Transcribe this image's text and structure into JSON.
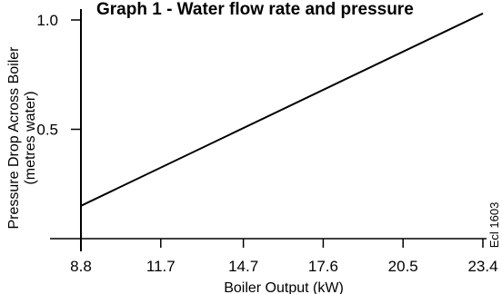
{
  "chart_data": {
    "type": "line",
    "title": "Graph 1 - Water flow rate and pressure",
    "xlabel": "Boiler Output (kW)",
    "ylabel": [
      "Pressure Drop Across Boiler",
      "(metres water)"
    ],
    "x_ticks": [
      "8.8",
      "11.7",
      "14.7",
      "17.6",
      "20.5",
      "23.4"
    ],
    "y_ticks": [
      "0.5",
      "1.0"
    ],
    "xlim": [
      8.8,
      23.4
    ],
    "ylim": [
      0,
      1.0
    ],
    "series": [
      {
        "x": [
          8.8,
          23.4
        ],
        "y": [
          0.15,
          1.03
        ]
      }
    ],
    "side_note": "Ecl 1603",
    "line_color": "#000000",
    "grid": false,
    "legend": "none"
  }
}
